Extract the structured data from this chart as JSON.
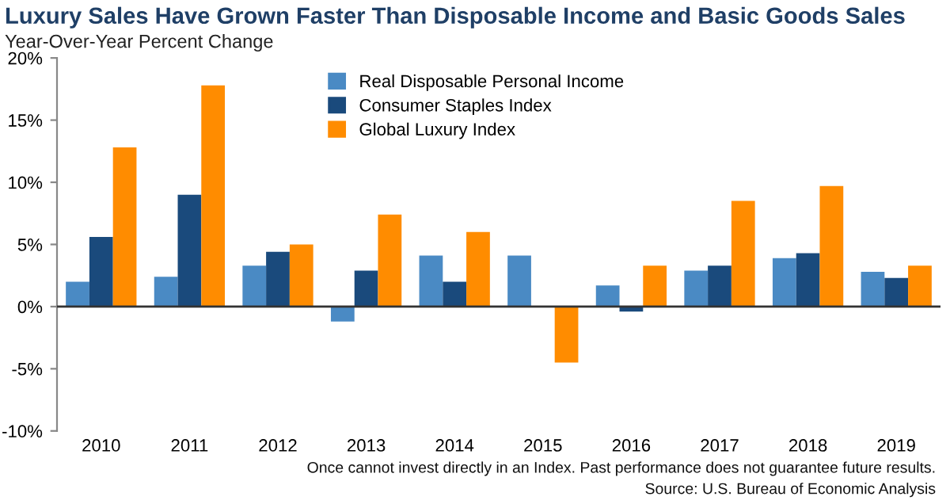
{
  "chart_data": {
    "type": "bar",
    "title": "Luxury Sales Have Grown Faster Than Disposable Income and Basic Goods Sales",
    "subtitle": "Year-Over-Year Percent Change",
    "categories": [
      "2010",
      "2011",
      "2012",
      "2013",
      "2014",
      "2015",
      "2016",
      "2017",
      "2018",
      "2019"
    ],
    "series": [
      {
        "name": "Real Disposable Personal Income",
        "color": "#4a8ac4",
        "values": [
          2.0,
          2.4,
          3.3,
          -1.2,
          4.1,
          4.1,
          1.7,
          2.9,
          3.9,
          2.8
        ]
      },
      {
        "name": "Consumer Staples Index",
        "color": "#1a4a7c",
        "values": [
          5.6,
          9.0,
          4.4,
          2.9,
          2.0,
          0,
          -0.4,
          3.3,
          4.3,
          2.3
        ]
      },
      {
        "name": "Global Luxury Index",
        "color": "#ff8c00",
        "values": [
          12.8,
          17.8,
          5.0,
          7.4,
          6.0,
          -4.5,
          3.3,
          8.5,
          9.7,
          3.3
        ]
      }
    ],
    "ylim": [
      -10,
      20
    ],
    "yticks": [
      {
        "value": -10,
        "label": "-10%"
      },
      {
        "value": -5,
        "label": "-5%"
      },
      {
        "value": 0,
        "label": "0%"
      },
      {
        "value": 5,
        "label": "5%"
      },
      {
        "value": 10,
        "label": "10%"
      },
      {
        "value": 15,
        "label": "15%"
      },
      {
        "value": 20,
        "label": "20%"
      }
    ],
    "annotations": [
      "Once cannot invest directly in an Index. Past performance does not guarantee future results.",
      "Source: U.S. Bureau of Economic Analysis"
    ],
    "legend": "top"
  }
}
